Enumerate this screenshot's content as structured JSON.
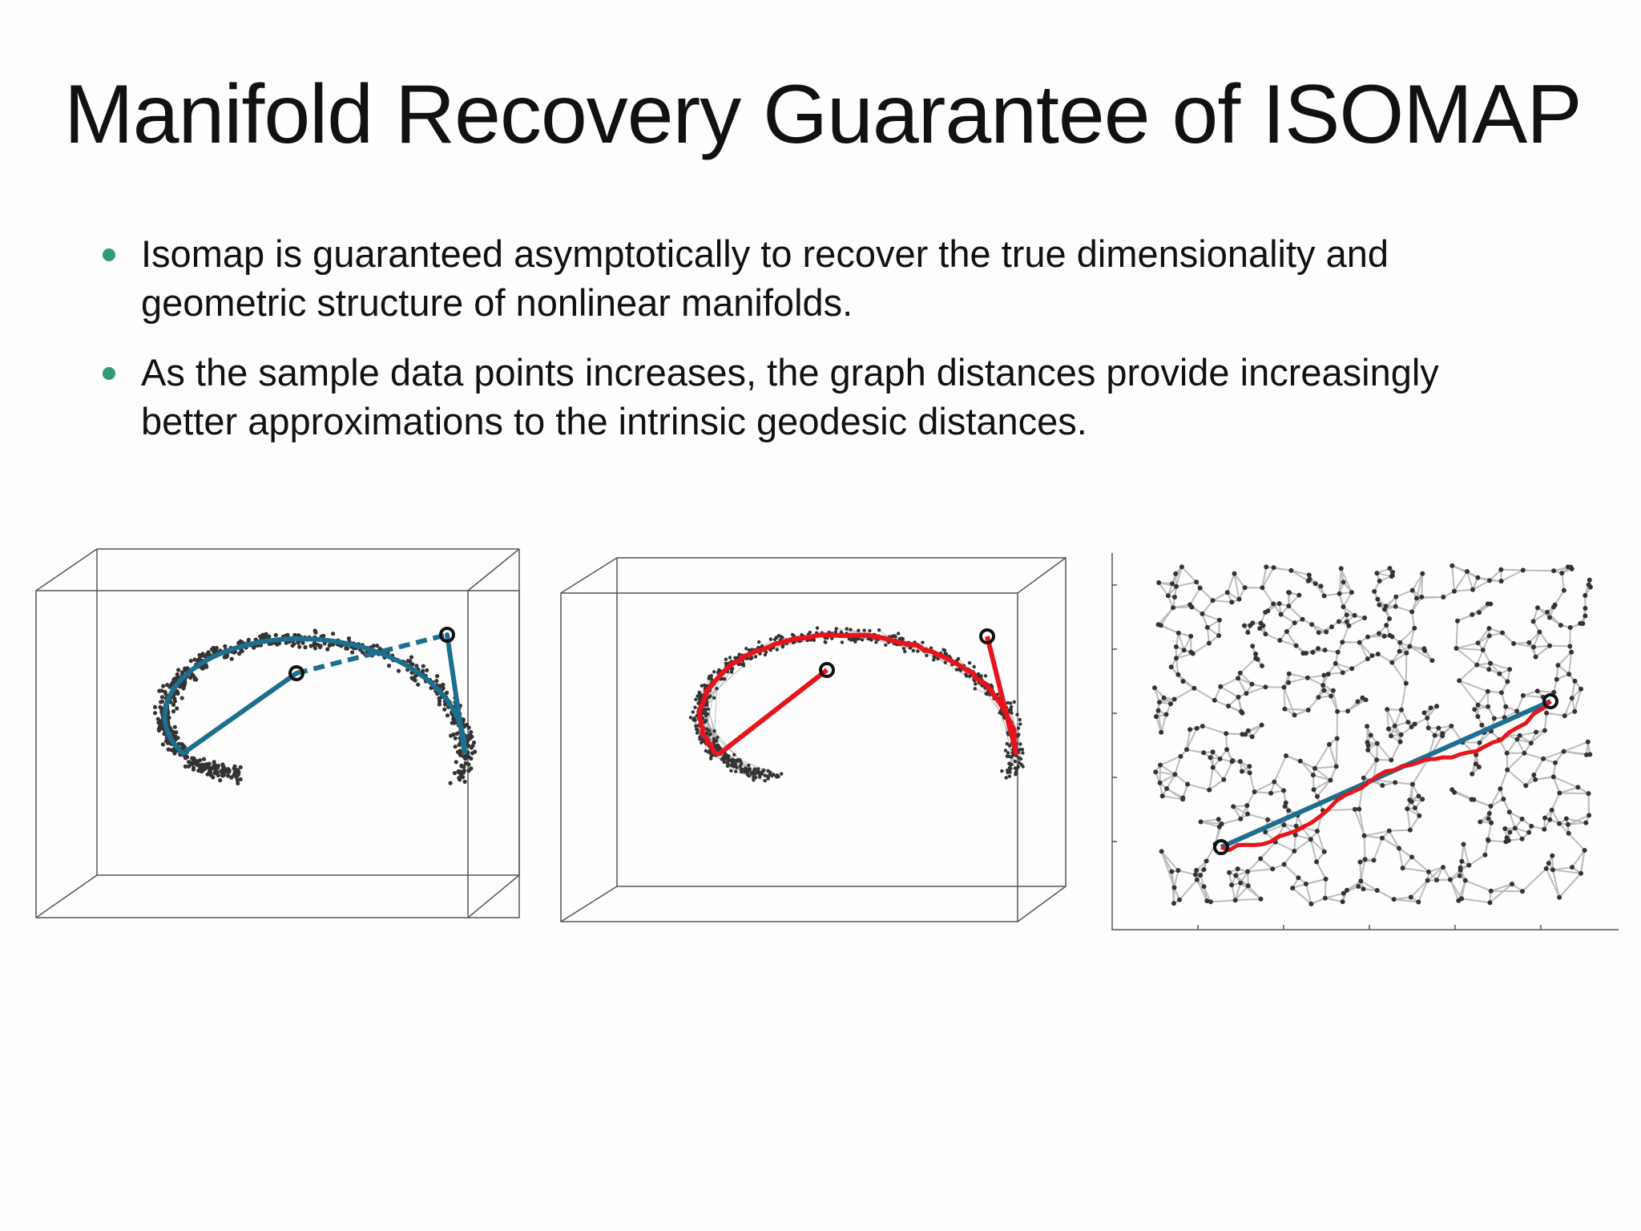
{
  "slide": {
    "title": "Manifold Recovery Guarantee of ISOMAP",
    "bullets": [
      "Isomap is guaranteed asymptotically to recover the true dimensionality and geometric structure of nonlinear manifolds.",
      "As the sample data points increases, the graph distances provide increasingly better approximations to the intrinsic geodesic distances."
    ],
    "colors": {
      "bullet": "#2e9a7b",
      "geodesic": "#1d6f8f",
      "graph_path": "#e8141c",
      "points": "#333333",
      "edges": "#b8b8b8"
    }
  }
}
